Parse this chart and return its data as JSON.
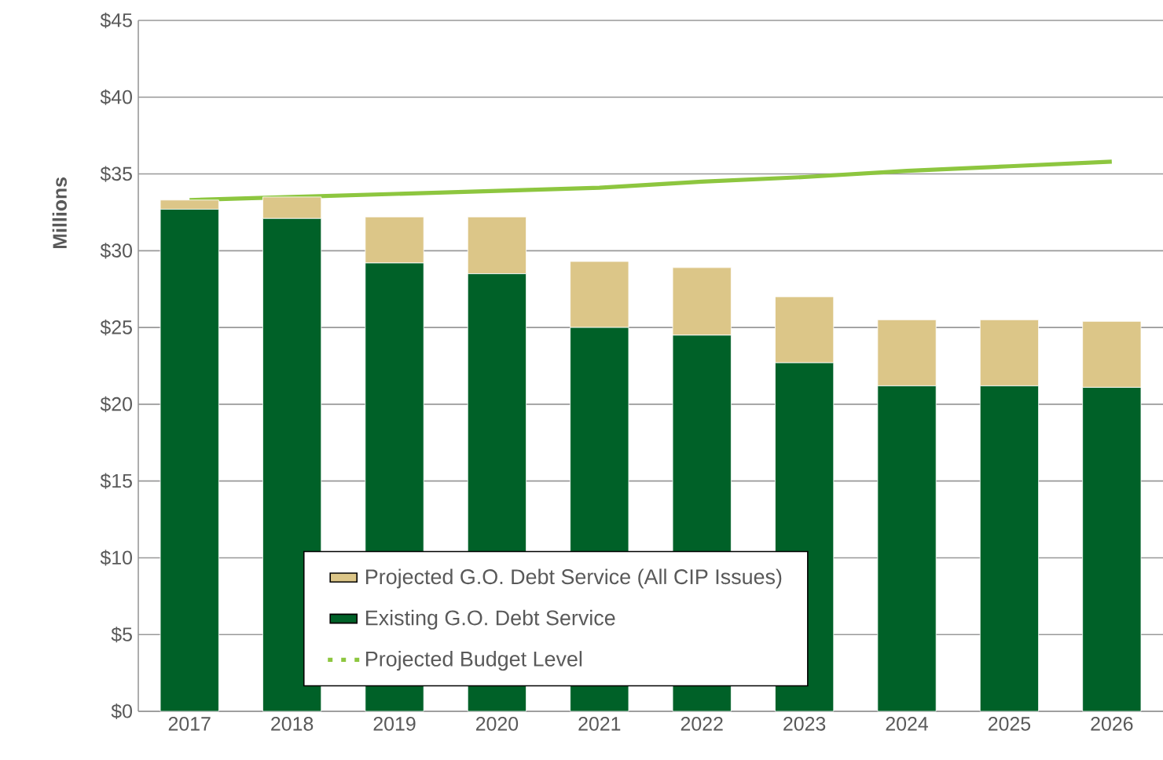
{
  "chart_data": {
    "type": "bar",
    "stacked": true,
    "ylabel": "Millions",
    "categories": [
      "2017",
      "2018",
      "2019",
      "2020",
      "2021",
      "2022",
      "2023",
      "2024",
      "2025",
      "2026"
    ],
    "series": [
      {
        "name": "Existing G.O. Debt Service",
        "color": "#006128",
        "values": [
          32.7,
          32.1,
          29.2,
          28.5,
          25.0,
          24.5,
          22.7,
          21.2,
          21.2,
          21.1
        ]
      },
      {
        "name": "Projected G.O. Debt Service (All CIP Issues)",
        "color": "#dcc688",
        "values": [
          0.6,
          1.4,
          3.0,
          3.7,
          4.3,
          4.4,
          4.3,
          4.3,
          4.3,
          4.3
        ]
      },
      {
        "name": "Projected Budget Level",
        "type": "line",
        "color": "#8dc63f",
        "values": [
          33.3,
          33.5,
          33.7,
          33.9,
          34.1,
          34.5,
          34.8,
          35.2,
          35.5,
          35.8
        ]
      }
    ],
    "ylim": [
      0,
      45
    ],
    "yticks": [
      {
        "value": 0,
        "label": "$0"
      },
      {
        "value": 5,
        "label": "$5"
      },
      {
        "value": 10,
        "label": "$10"
      },
      {
        "value": 15,
        "label": "$15"
      },
      {
        "value": 20,
        "label": "$20"
      },
      {
        "value": 25,
        "label": "$25"
      },
      {
        "value": 30,
        "label": "$30"
      },
      {
        "value": 35,
        "label": "$35"
      },
      {
        "value": 40,
        "label": "$40"
      },
      {
        "value": 45,
        "label": "$45"
      }
    ],
    "grid": "y",
    "legend": "bottom"
  }
}
